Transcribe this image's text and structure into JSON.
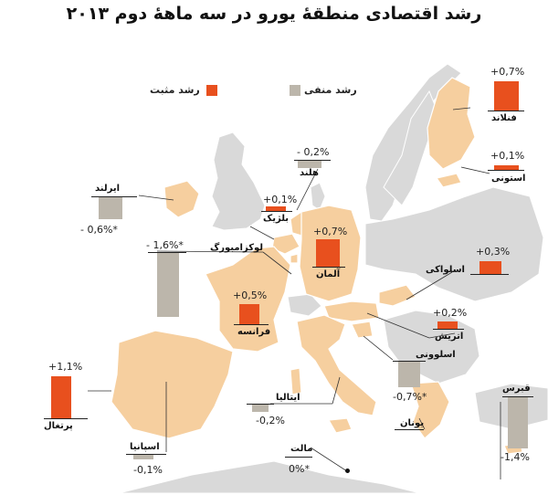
{
  "title": "رشد اقتصادی منطقهٔ یورو در سه ماههٔ دوم ۲۰۱۳",
  "legend": {
    "positive": "رشد مثبت",
    "negative": "رشد منفی"
  },
  "colors": {
    "positive": "#e8501e",
    "negative": "#bcb6ab",
    "land_highlight": "#f7cfa3",
    "land_other": "#d7d7d7",
    "sea": "#ffffff"
  },
  "chart_data": {
    "type": "map",
    "countries": [
      {
        "name": "فنلاند",
        "value_label": "+0,7%",
        "value": 0.7
      },
      {
        "name": "استونی",
        "value_label": "+0,1%",
        "value": 0.1
      },
      {
        "name": "هلند",
        "value_label": "- 0,2%",
        "value": -0.2
      },
      {
        "name": "ایرلند",
        "value_label": "- 0,6%*",
        "value": -0.6
      },
      {
        "name": "بلژیک",
        "value_label": "+0,1%",
        "value": 0.1
      },
      {
        "name": "آلمان",
        "value_label": "+0,7%",
        "value": 0.7
      },
      {
        "name": "لوکزامبورگ",
        "value_label": "- 1,6%*",
        "value": -1.6
      },
      {
        "name": "اسلواکی",
        "value_label": "+0,3%",
        "value": 0.3
      },
      {
        "name": "فرانسه",
        "value_label": "+0,5%",
        "value": 0.5
      },
      {
        "name": "اتریش",
        "value_label": "+0,2%",
        "value": 0.2
      },
      {
        "name": "اسلوونی",
        "value_label": "-0,7%*",
        "value": -0.7
      },
      {
        "name": "پرتغال",
        "value_label": "+1,1%",
        "value": 1.1
      },
      {
        "name": "ایتالیا",
        "value_label": "-0,2%",
        "value": -0.2
      },
      {
        "name": "قبرس",
        "value_label": "-1,4%",
        "value": -1.4
      },
      {
        "name": "یونان",
        "value_label": "",
        "value": null
      },
      {
        "name": "اسپانیا",
        "value_label": "-0,1%",
        "value": -0.1
      },
      {
        "name": "مالت",
        "value_label": "0%*",
        "value": 0
      }
    ]
  }
}
